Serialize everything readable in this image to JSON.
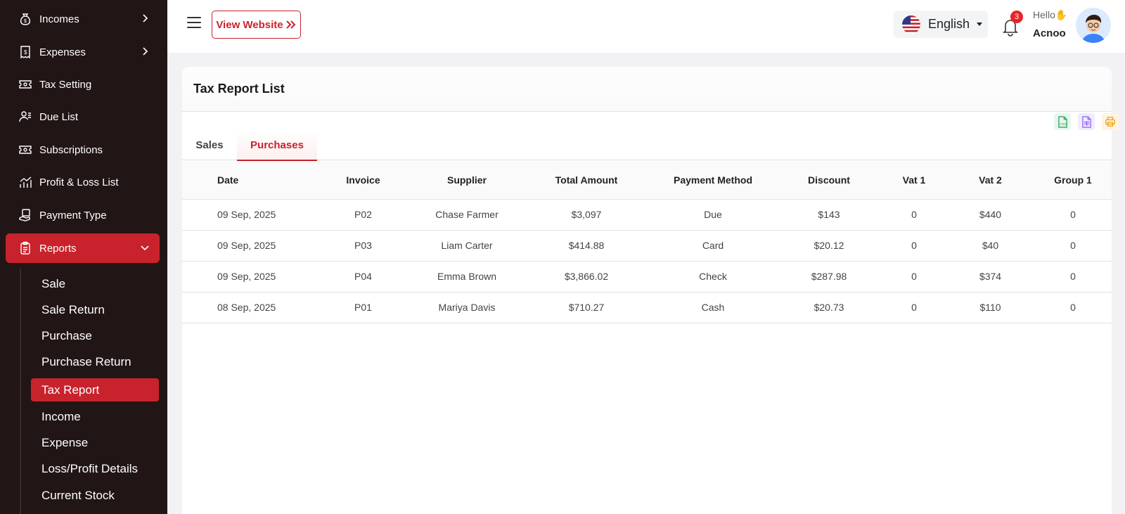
{
  "sidebar": {
    "items": [
      {
        "label": "Incomes",
        "icon": "money-bag-icon",
        "has_arrow": true
      },
      {
        "label": "Expenses",
        "icon": "receipt-icon",
        "has_arrow": true
      },
      {
        "label": "Tax Setting",
        "icon": "ticket-icon",
        "has_arrow": false
      },
      {
        "label": "Due List",
        "icon": "user-list-icon",
        "has_arrow": false
      },
      {
        "label": "Subscriptions",
        "icon": "ticket-icon",
        "has_arrow": false
      },
      {
        "label": "Profit & Loss List",
        "icon": "bar-chart-icon",
        "has_arrow": false
      },
      {
        "label": "Payment Type",
        "icon": "hand-money-icon",
        "has_arrow": false
      },
      {
        "label": "Reports",
        "icon": "clipboard-icon",
        "has_arrow": true,
        "active": true
      }
    ],
    "reports_sub": [
      {
        "label": "Sale"
      },
      {
        "label": "Sale Return"
      },
      {
        "label": "Purchase"
      },
      {
        "label": "Purchase Return"
      },
      {
        "label": "Tax Report",
        "active": true
      },
      {
        "label": "Income"
      },
      {
        "label": "Expense"
      },
      {
        "label": "Loss/Profit Details"
      },
      {
        "label": "Current Stock"
      }
    ]
  },
  "header": {
    "view_website": "View Website",
    "language": "English",
    "notifications": "3",
    "greeting": "Hello",
    "user_name": "Acnoo"
  },
  "page": {
    "title": "Tax Report List",
    "tabs": [
      "Sales",
      "Purchases"
    ],
    "active_tab": "Purchases"
  },
  "table": {
    "columns": [
      "Date",
      "Invoice",
      "Supplier",
      "Total Amount",
      "Payment Method",
      "Discount",
      "Vat 1",
      "Vat 2",
      "Group 1"
    ],
    "rows": [
      [
        "09 Sep, 2025",
        "P02",
        "Chase Farmer",
        "$3,097",
        "Due",
        "$143",
        "0",
        "$440",
        "0"
      ],
      [
        "09 Sep, 2025",
        "P03",
        "Liam Carter",
        "$414.88",
        "Card",
        "$20.12",
        "0",
        "$40",
        "0"
      ],
      [
        "09 Sep, 2025",
        "P04",
        "Emma Brown",
        "$3,866.02",
        "Check",
        "$287.98",
        "0",
        "$374",
        "0"
      ],
      [
        "08 Sep, 2025",
        "P01",
        "Mariya Davis",
        "$710.27",
        "Cash",
        "$20.73",
        "0",
        "$110",
        "0"
      ]
    ]
  },
  "colors": {
    "accent": "#c8232c",
    "sidebar_bg": "#221515",
    "csv_green": "#1f9d55",
    "excel_purple": "#8b5cf6",
    "print_orange": "#f59e0b"
  }
}
